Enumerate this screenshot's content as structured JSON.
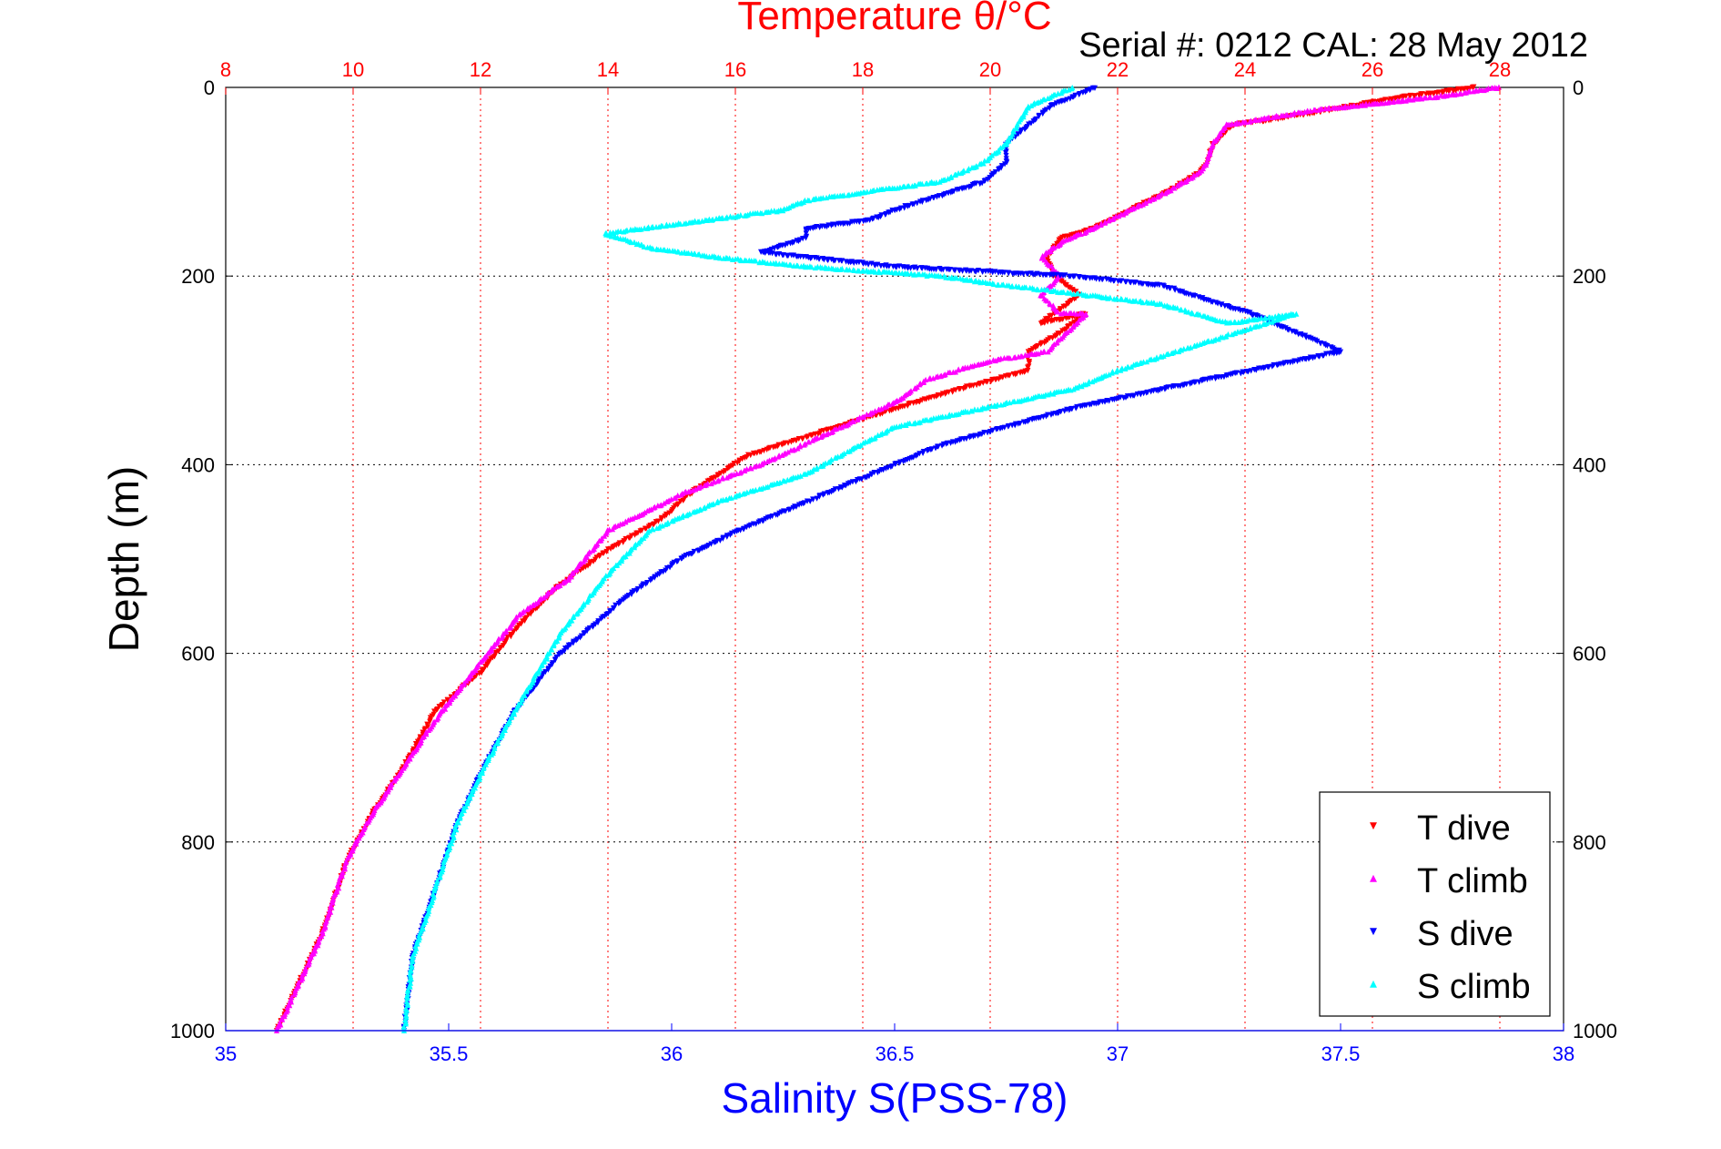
{
  "chart_data": {
    "type": "scatter",
    "title": "Temperature θ/°C",
    "subtitle": "Serial #: 0212  CAL: 28 May 2012",
    "xlabel": "Salinity S(PSS-78)",
    "ylabel": "Depth (m)",
    "top_axis": {
      "ticks": [
        "8",
        "10",
        "12",
        "14",
        "16",
        "18",
        "20",
        "22",
        "24",
        "26",
        "28"
      ],
      "range": [
        8,
        29
      ]
    },
    "bottom_axis": {
      "ticks": [
        "35",
        "35.5",
        "36",
        "36.5",
        "37",
        "37.5",
        "38"
      ],
      "range": [
        35,
        38
      ]
    },
    "y_axis": {
      "ticks": [
        "0",
        "200",
        "400",
        "600",
        "800",
        "1000"
      ],
      "range": [
        0,
        1000
      ],
      "reversed": true
    },
    "grid": true,
    "legend_position": "bottom-right",
    "colors": {
      "top_axis": "#ff0000",
      "bottom_axis": "#0000ff",
      "title": "#ff0000",
      "xlabel": "#0000ff"
    },
    "series": [
      {
        "name": "T dive",
        "axis": "top",
        "marker": "triangle-down",
        "color": "#ff0000",
        "x": [
          27.6,
          26.5,
          24.8,
          23.8,
          23.5,
          23.4,
          23.3,
          22.8,
          22.2,
          21.6,
          21.1,
          20.9,
          21.0,
          21.4,
          21.0,
          20.8,
          21.5,
          21.1,
          20.6,
          20.6,
          19.5,
          18.3,
          17.6,
          16.2,
          15.3,
          14.8,
          14.0,
          13.2,
          12.6,
          12.0,
          11.3,
          10.8,
          10.3,
          9.9,
          9.5,
          8.8
        ],
        "y": [
          0,
          10,
          30,
          40,
          60,
          80,
          90,
          110,
          130,
          150,
          160,
          180,
          200,
          220,
          240,
          250,
          240,
          260,
          280,
          300,
          320,
          345,
          360,
          390,
          430,
          460,
          490,
          530,
          570,
          620,
          660,
          720,
          770,
          820,
          900,
          1000
        ]
      },
      {
        "name": "T climb",
        "axis": "top",
        "marker": "triangle-up",
        "color": "#ff00ff",
        "x": [
          28.0,
          27.0,
          25.0,
          23.7,
          23.5,
          23.4,
          23.3,
          22.8,
          22.2,
          21.6,
          21.1,
          20.8,
          21.1,
          20.8,
          21.1,
          21.5,
          20.9,
          20.0,
          19.0,
          18.6,
          18.3,
          16.4,
          15.2,
          14.0,
          13.4,
          12.6,
          12.0,
          11.3,
          10.8,
          10.3,
          9.9,
          9.5,
          8.8
        ],
        "y": [
          0,
          10,
          25,
          40,
          60,
          80,
          90,
          110,
          130,
          150,
          165,
          180,
          200,
          220,
          240,
          240,
          280,
          290,
          310,
          330,
          340,
          400,
          430,
          470,
          520,
          560,
          610,
          670,
          720,
          770,
          820,
          900,
          1000
        ]
      },
      {
        "name": "S dive",
        "axis": "bottom",
        "marker": "triangle-down",
        "color": "#0000ff",
        "x": [
          36.95,
          36.85,
          36.75,
          36.75,
          36.7,
          36.6,
          36.5,
          36.45,
          36.3,
          36.3,
          36.2,
          36.5,
          36.9,
          37.1,
          37.3,
          37.4,
          37.5,
          37.3,
          37.1,
          36.9,
          36.6,
          36.5,
          36.3,
          36.15,
          36.02,
          35.9,
          35.75,
          35.65,
          35.58,
          35.52,
          35.47,
          35.42,
          35.4
        ],
        "y": [
          0,
          20,
          60,
          80,
          100,
          115,
          130,
          140,
          150,
          160,
          175,
          190,
          200,
          210,
          240,
          260,
          280,
          300,
          320,
          340,
          380,
          400,
          440,
          470,
          500,
          540,
          600,
          660,
          720,
          780,
          850,
          920,
          1000
        ]
      },
      {
        "name": "S climb",
        "axis": "bottom",
        "marker": "triangle-up",
        "color": "#00ffff",
        "x": [
          36.9,
          36.8,
          36.75,
          36.7,
          36.6,
          36.45,
          36.3,
          36.25,
          35.85,
          35.95,
          36.1,
          36.3,
          36.6,
          36.75,
          37.1,
          37.25,
          37.4,
          37.2,
          37.0,
          36.9,
          36.8,
          36.5,
          36.3,
          36.1,
          35.95,
          35.85,
          35.75,
          35.65,
          35.58,
          35.52,
          35.47,
          35.42,
          35.4
        ],
        "y": [
          0,
          20,
          60,
          80,
          100,
          110,
          120,
          130,
          155,
          170,
          180,
          190,
          200,
          210,
          230,
          250,
          240,
          270,
          300,
          320,
          330,
          360,
          410,
          440,
          470,
          520,
          580,
          660,
          720,
          780,
          850,
          920,
          1000
        ]
      }
    ]
  }
}
